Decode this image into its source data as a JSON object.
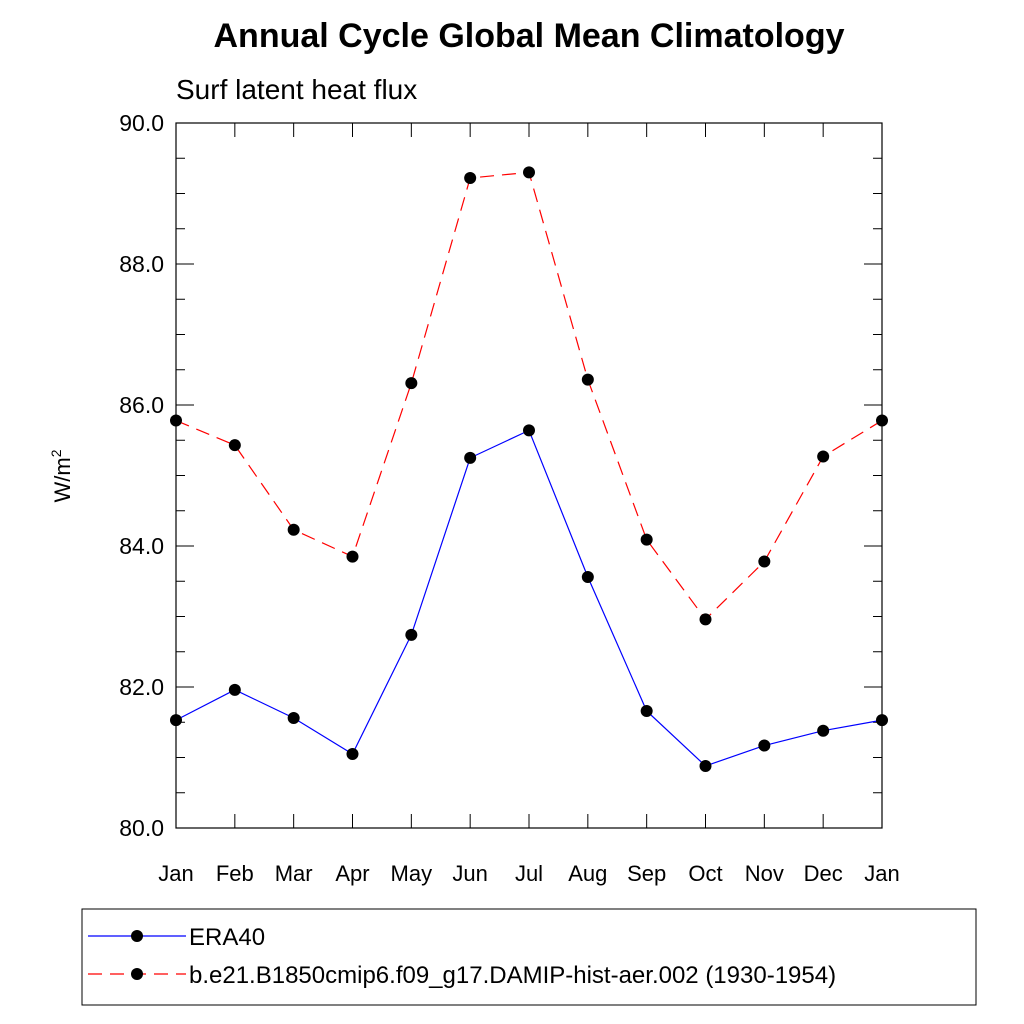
{
  "chart_data": {
    "type": "line",
    "title": "Annual Cycle Global Mean Climatology",
    "subtitle": "Surf latent heat flux",
    "ylabel": "W/m",
    "ylabel_superscript": "2",
    "xlabel": "",
    "ylim": [
      80.0,
      90.0
    ],
    "y_ticks": [
      "80.0",
      "82.0",
      "84.0",
      "86.0",
      "88.0",
      "90.0"
    ],
    "categories": [
      "Jan",
      "Feb",
      "Mar",
      "Apr",
      "May",
      "Jun",
      "Jul",
      "Aug",
      "Sep",
      "Oct",
      "Nov",
      "Dec",
      "Jan"
    ],
    "grid": false,
    "legend_position": "bottom",
    "series": [
      {
        "name": "ERA40",
        "color": "#0000ff",
        "line_style": "solid",
        "marker": "filled-circle",
        "values": [
          81.53,
          81.96,
          81.56,
          81.05,
          82.74,
          85.25,
          85.64,
          83.56,
          81.66,
          80.88,
          81.17,
          81.38,
          81.53
        ]
      },
      {
        "name": "b.e21.B1850cmip6.f09_g17.DAMIP-hist-aer.002 (1930-1954)",
        "color": "#ff0000",
        "line_style": "dashed",
        "marker": "filled-circle",
        "values": [
          85.78,
          85.43,
          84.23,
          83.85,
          86.31,
          89.22,
          89.3,
          86.36,
          84.09,
          82.96,
          83.78,
          85.27,
          85.78
        ]
      }
    ]
  }
}
